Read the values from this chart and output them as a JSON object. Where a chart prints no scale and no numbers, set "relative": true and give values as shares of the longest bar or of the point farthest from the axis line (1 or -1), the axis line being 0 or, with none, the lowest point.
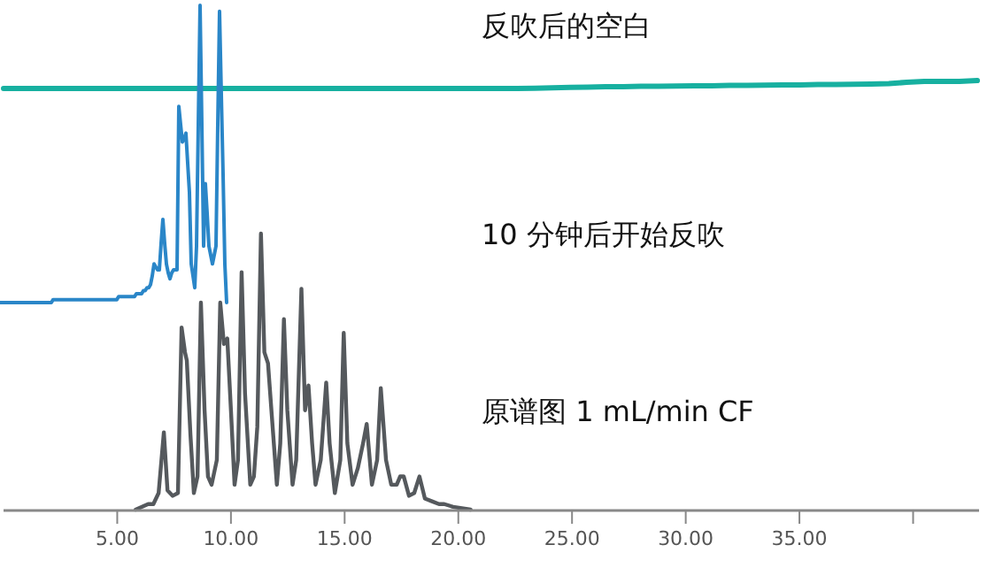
{
  "chart_data": [
    {
      "type": "line",
      "relative": true,
      "tick_labels": false,
      "categories": [
        null,
        null,
        null,
        null,
        null,
        null,
        null,
        null,
        null,
        null,
        null,
        null,
        null,
        null,
        null,
        null,
        null,
        null,
        null,
        null,
        null,
        null,
        null,
        null,
        null,
        null,
        null,
        null,
        null,
        null,
        null,
        null,
        null,
        null,
        null,
        null,
        null,
        null,
        null,
        null,
        null,
        null,
        null,
        null,
        null,
        null,
        null,
        null,
        null,
        null,
        null,
        null,
        null,
        null,
        null,
        null
      ],
      "series": [
        {
          "name": "反吹后的空白",
          "color": "#17b0a0",
          "values": [
            0,
            0,
            0,
            0,
            0,
            0,
            0,
            0,
            0,
            0,
            0,
            0,
            0,
            0,
            0,
            0,
            0,
            0,
            0,
            0,
            0,
            0,
            0,
            0,
            0,
            0,
            0,
            0,
            0,
            0,
            0.04,
            0.09,
            0.13,
            0.18,
            0.22,
            0.22,
            0.27,
            0.29,
            0.31,
            0.33,
            0.33,
            0.38,
            0.4,
            0.42,
            0.44,
            0.44,
            0.49,
            0.51,
            0.53,
            0.56,
            0.6,
            0.78,
            0.89,
            0.89,
            0.89,
            1
          ]
        }
      ]
    },
    {
      "type": "line",
      "relative": true,
      "tick_labels": false,
      "categories": [
        null,
        null,
        null,
        null,
        null,
        null,
        null,
        null,
        null,
        null,
        null,
        null,
        null,
        null,
        null,
        null,
        null,
        null,
        null,
        null,
        null,
        null,
        null,
        null,
        null,
        null,
        null,
        null,
        null,
        null,
        null,
        null,
        null,
        null,
        null,
        null,
        null,
        null,
        null,
        null,
        null,
        null,
        null,
        null,
        null,
        null,
        null,
        null,
        null,
        null,
        null,
        null,
        null,
        null,
        null,
        null,
        null,
        null,
        null,
        null,
        null,
        null,
        null,
        null,
        null,
        null,
        null,
        null,
        null,
        null,
        null,
        null,
        null,
        null,
        null,
        null,
        null,
        null,
        null,
        null,
        null,
        null,
        null,
        null,
        null,
        null,
        null,
        null,
        null,
        null,
        null,
        null,
        null,
        null,
        null,
        null,
        null,
        null,
        null,
        null,
        null,
        null,
        null,
        null,
        null,
        null,
        null,
        null,
        null,
        null,
        null,
        null,
        null,
        null,
        null,
        null,
        null,
        null,
        null,
        null,
        null,
        null,
        null,
        null,
        null,
        null,
        null,
        null,
        null
      ],
      "series": [
        {
          "name": "10 分钟后开始反吹",
          "color": "#2a86c8",
          "values": [
            0,
            0,
            0,
            0,
            0,
            0,
            0,
            0,
            0,
            0,
            0,
            0,
            0,
            0,
            0,
            0,
            0,
            0,
            0,
            0,
            0,
            0,
            0,
            0,
            0,
            0,
            0,
            0,
            0,
            0,
            0.01,
            0.01,
            0.01,
            0.01,
            0.01,
            0.01,
            0.01,
            0.01,
            0.01,
            0.01,
            0.01,
            0.01,
            0.01,
            0.01,
            0.01,
            0.01,
            0.01,
            0.01,
            0.01,
            0.01,
            0.01,
            0.01,
            0.01,
            0.01,
            0.01,
            0.01,
            0.01,
            0.01,
            0.01,
            0.01,
            0.01,
            0.01,
            0.01,
            0.01,
            0.01,
            0.01,
            0.01,
            0.02,
            0.02,
            0.02,
            0.02,
            0.02,
            0.02,
            0.02,
            0.02,
            0.02,
            0.02,
            0.03,
            0.03,
            0.03,
            0.03,
            0.04,
            0.04,
            0.05,
            0.05,
            0.06,
            0.09,
            0.13,
            0.12,
            0.11,
            0.11,
            0.2,
            0.28,
            0.2,
            0.13,
            0.1,
            0.08,
            0.1,
            0.11,
            0.11,
            0.11,
            0.66,
            0.6,
            0.54,
            0.55,
            0.57,
            0.47,
            0.37,
            0.13,
            0.09,
            0.05,
            0.19,
            0.6,
            1,
            0.6,
            0.19,
            0.4,
            0.3,
            0.19,
            0.16,
            0.13,
            0.16,
            0.19,
            0.6,
            0.98,
            0.7,
            0.43,
            0.13,
            0
          ]
        }
      ]
    },
    {
      "type": "line",
      "relative": true,
      "xlim": [
        0,
        42.9
      ],
      "tick_labels": "x",
      "xticks": [
        {
          "value": 5,
          "label": "5.00"
        },
        {
          "value": 10,
          "label": "10.00"
        },
        {
          "value": 15,
          "label": "15.00"
        },
        {
          "value": 20,
          "label": "20.00"
        },
        {
          "value": 25,
          "label": "25.00"
        },
        {
          "value": 30,
          "label": "30.00"
        },
        {
          "value": 35,
          "label": "35.00"
        },
        {
          "value": 40,
          "label": null
        }
      ],
      "series": [
        {
          "name": "原谱图 1 mL/min CF",
          "color": "#55595d",
          "x": [
            5.81,
            6.36,
            6.59,
            6.82,
            7.05,
            7.21,
            7.44,
            7.67,
            7.83,
            7.98,
            8.06,
            8.22,
            8.37,
            8.53,
            8.68,
            8.84,
            8.99,
            9.15,
            9.38,
            9.53,
            9.69,
            9.84,
            10.0,
            10.16,
            10.31,
            10.47,
            10.62,
            10.85,
            11.01,
            11.16,
            11.32,
            11.47,
            11.63,
            11.78,
            12.02,
            12.17,
            12.33,
            12.48,
            12.71,
            12.87,
            13.1,
            13.26,
            13.41,
            13.57,
            13.72,
            13.95,
            14.19,
            14.34,
            14.57,
            14.81,
            14.96,
            15.12,
            15.35,
            15.58,
            15.81,
            15.97,
            16.2,
            16.43,
            16.59,
            16.82,
            17.05,
            17.29,
            17.44,
            17.6,
            17.83,
            18.06,
            18.29,
            18.53,
            18.84,
            19.15,
            19.38,
            19.77,
            20.54
          ],
          "values": [
            0,
            0.02,
            0.02,
            0.06,
            0.28,
            0.07,
            0.05,
            0.06,
            0.66,
            0.57,
            0.54,
            0.27,
            0.06,
            0.12,
            0.75,
            0.36,
            0.12,
            0.09,
            0.18,
            0.75,
            0.6,
            0.62,
            0.36,
            0.09,
            0.18,
            0.86,
            0.42,
            0.09,
            0.12,
            0.3,
            1,
            0.57,
            0.53,
            0.36,
            0.09,
            0.24,
            0.69,
            0.36,
            0.09,
            0.18,
            0.8,
            0.36,
            0.45,
            0.24,
            0.09,
            0.18,
            0.46,
            0.24,
            0.06,
            0.18,
            0.64,
            0.24,
            0.09,
            0.15,
            0.24,
            0.31,
            0.09,
            0.18,
            0.44,
            0.18,
            0.09,
            0.09,
            0.12,
            0.12,
            0.05,
            0.06,
            0.12,
            0.04,
            0.03,
            0.02,
            0.02,
            0.01,
            0
          ]
        }
      ]
    }
  ]
}
